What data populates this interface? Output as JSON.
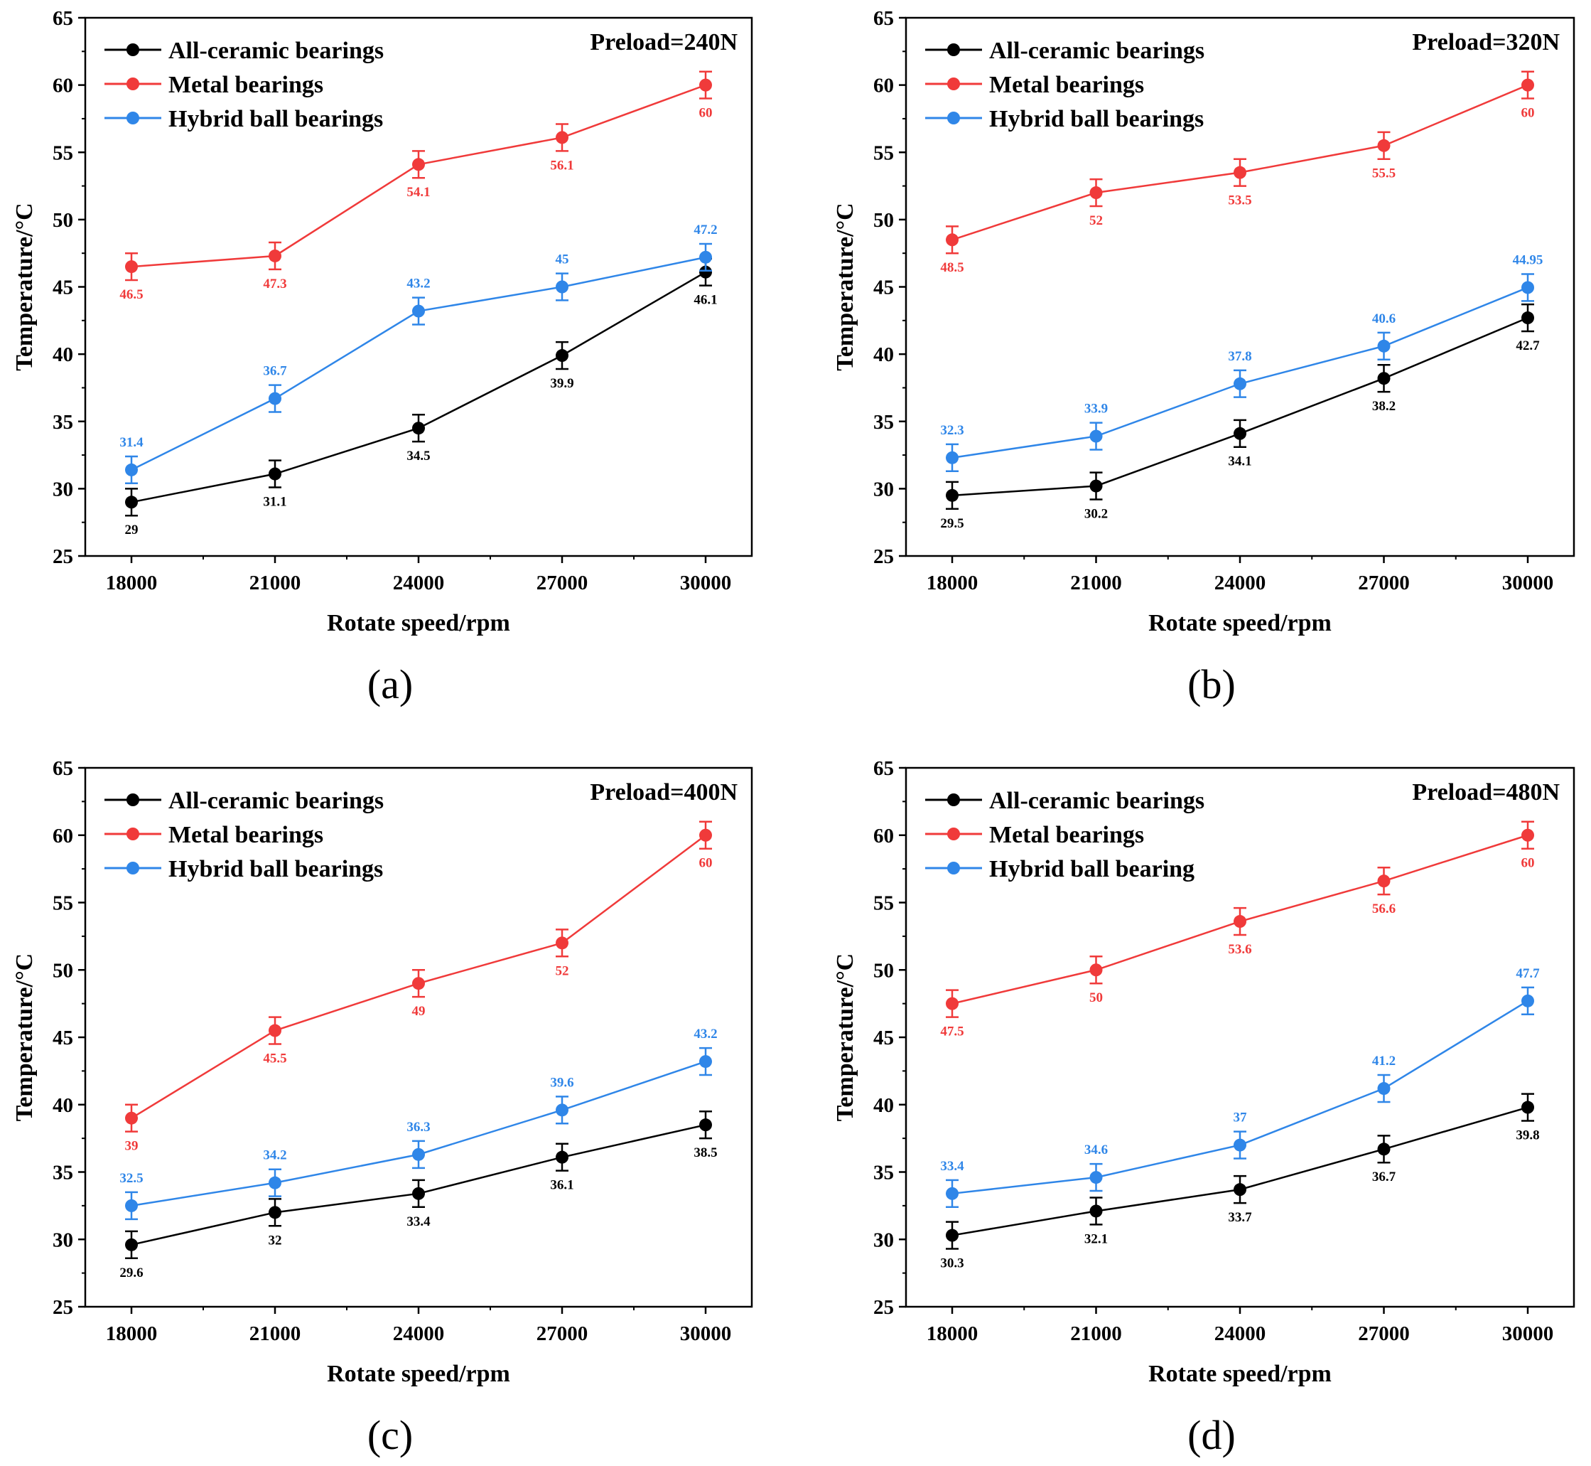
{
  "figure": {
    "x_axis_label": "Rotate speed/rpm",
    "y_axis_label": "Temperature/°C",
    "colors": {
      "All-ceramic bearings": "#000000",
      "Metal bearings": "#f03a3a",
      "Hybrid ball bearings": "#2f86e8"
    }
  },
  "chart_data": [
    {
      "type": "line",
      "panel_label": "(a)",
      "annotation": "Preload=240N",
      "xlabel": "Rotate speed/rpm",
      "ylabel": "Temperature/°C",
      "x": [
        "18000",
        "21000",
        "24000",
        "27000",
        "30000"
      ],
      "ylim": [
        25,
        65
      ],
      "yticks": [
        25,
        30,
        35,
        40,
        45,
        50,
        55,
        60,
        65
      ],
      "grid": false,
      "legend_position": "top-left",
      "series": [
        {
          "name": "All-ceramic bearings",
          "color": "#000000",
          "values": [
            29,
            31.1,
            34.5,
            39.9,
            46.1
          ],
          "labels": [
            "29",
            "31.1",
            "34.5",
            "39.9",
            "46.1"
          ],
          "label_side": [
            "below",
            "below",
            "below",
            "below",
            "below"
          ]
        },
        {
          "name": "Metal bearings",
          "color": "#f03a3a",
          "values": [
            46.5,
            47.3,
            54.1,
            56.1,
            60
          ],
          "labels": [
            "46.5",
            "47.3",
            "54.1",
            "56.1",
            "60"
          ],
          "label_side": [
            "below",
            "below",
            "below",
            "below",
            "below"
          ]
        },
        {
          "name": "Hybrid ball bearings",
          "color": "#2f86e8",
          "values": [
            31.4,
            36.7,
            43.2,
            45,
            47.2
          ],
          "labels": [
            "31.4",
            "36.7",
            "43.2",
            "45",
            "47.2"
          ],
          "label_side": [
            "above",
            "above",
            "above",
            "above",
            "above"
          ]
        }
      ]
    },
    {
      "type": "line",
      "panel_label": "(b)",
      "annotation": "Preload=320N",
      "xlabel": "Rotate speed/rpm",
      "ylabel": "Temperature/°C",
      "x": [
        "18000",
        "21000",
        "24000",
        "27000",
        "30000"
      ],
      "ylim": [
        25,
        65
      ],
      "yticks": [
        25,
        30,
        35,
        40,
        45,
        50,
        55,
        60,
        65
      ],
      "grid": false,
      "legend_position": "top-left",
      "series": [
        {
          "name": "All-ceramic bearings",
          "color": "#000000",
          "values": [
            29.5,
            30.2,
            34.1,
            38.2,
            42.7
          ],
          "labels": [
            "29.5",
            "30.2",
            "34.1",
            "38.2",
            "42.7"
          ],
          "label_side": [
            "below",
            "below",
            "below",
            "below",
            "below"
          ]
        },
        {
          "name": "Metal bearings",
          "color": "#f03a3a",
          "values": [
            48.5,
            52,
            53.5,
            55.5,
            60
          ],
          "labels": [
            "48.5",
            "52",
            "53.5",
            "55.5",
            "60"
          ],
          "label_side": [
            "below",
            "below",
            "below",
            "below",
            "below"
          ]
        },
        {
          "name": "Hybrid ball bearings",
          "color": "#2f86e8",
          "values": [
            32.3,
            33.9,
            37.8,
            40.6,
            44.95
          ],
          "labels": [
            "32.3",
            "33.9",
            "37.8",
            "40.6",
            "44.95"
          ],
          "label_side": [
            "above",
            "above",
            "above",
            "above",
            "above"
          ]
        }
      ]
    },
    {
      "type": "line",
      "panel_label": "(c)",
      "annotation": "Preload=400N",
      "xlabel": "Rotate speed/rpm",
      "ylabel": "Temperature/°C",
      "x": [
        "18000",
        "21000",
        "24000",
        "27000",
        "30000"
      ],
      "ylim": [
        25,
        65
      ],
      "yticks": [
        25,
        30,
        35,
        40,
        45,
        50,
        55,
        60,
        65
      ],
      "grid": false,
      "legend_position": "top-left",
      "series": [
        {
          "name": "All-ceramic bearings",
          "color": "#000000",
          "values": [
            29.6,
            32,
            33.4,
            36.1,
            38.5
          ],
          "labels": [
            "29.6",
            "32",
            "33.4",
            "36.1",
            "38.5"
          ],
          "label_side": [
            "below",
            "below",
            "below",
            "below",
            "below"
          ]
        },
        {
          "name": "Metal bearings",
          "color": "#f03a3a",
          "values": [
            39,
            45.5,
            49,
            52,
            60
          ],
          "labels": [
            "39",
            "45.5",
            "49",
            "52",
            "60"
          ],
          "label_side": [
            "below",
            "below",
            "below",
            "below",
            "below"
          ]
        },
        {
          "name": "Hybrid ball bearings",
          "color": "#2f86e8",
          "values": [
            32.5,
            34.2,
            36.3,
            39.6,
            43.2
          ],
          "labels": [
            "32.5",
            "34.2",
            "36.3",
            "39.6",
            "43.2"
          ],
          "label_side": [
            "above",
            "above",
            "above",
            "above",
            "above"
          ]
        }
      ]
    },
    {
      "type": "line",
      "panel_label": "(d)",
      "annotation": "Preload=480N",
      "xlabel": "Rotate speed/rpm",
      "ylabel": "Temperature/°C",
      "x": [
        "18000",
        "21000",
        "24000",
        "27000",
        "30000"
      ],
      "ylim": [
        25,
        65
      ],
      "yticks": [
        25,
        30,
        35,
        40,
        45,
        50,
        55,
        60,
        65
      ],
      "grid": false,
      "legend_position": "top-left",
      "series": [
        {
          "name": "All-ceramic bearings",
          "color": "#000000",
          "values": [
            30.3,
            32.1,
            33.7,
            36.7,
            39.8
          ],
          "labels": [
            "30.3",
            "32.1",
            "33.7",
            "36.7",
            "39.8"
          ],
          "label_side": [
            "below",
            "below",
            "below",
            "below",
            "below"
          ]
        },
        {
          "name": "Metal bearings",
          "color": "#f03a3a",
          "values": [
            47.5,
            50,
            53.6,
            56.6,
            60
          ],
          "labels": [
            "47.5",
            "50",
            "53.6",
            "56.6",
            "60"
          ],
          "label_side": [
            "below",
            "below",
            "below",
            "below",
            "below"
          ]
        },
        {
          "name": "Hybrid ball bearing",
          "color": "#2f86e8",
          "values": [
            33.4,
            34.6,
            37,
            41.2,
            47.7
          ],
          "labels": [
            "33.4",
            "34.6",
            "37",
            "41.2",
            "47.7"
          ],
          "label_side": [
            "above",
            "above",
            "above",
            "above",
            "above"
          ]
        }
      ]
    }
  ]
}
